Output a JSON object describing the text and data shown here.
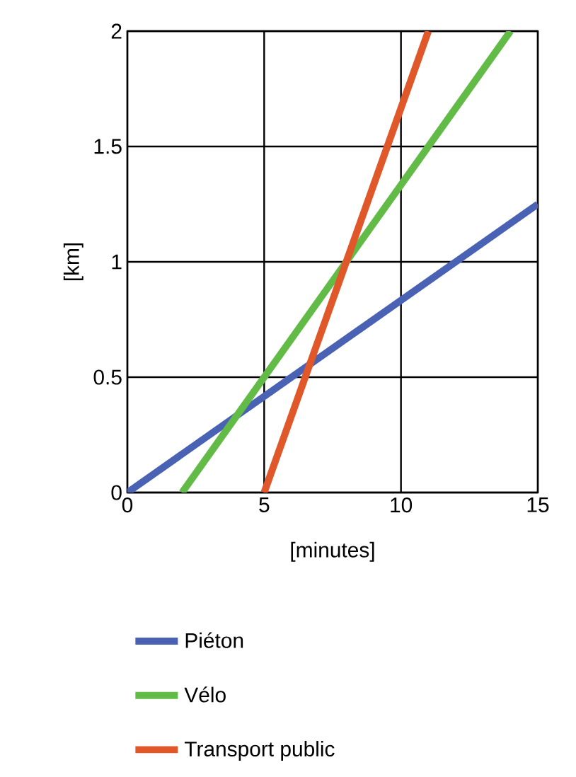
{
  "chart_data": {
    "type": "line",
    "xlabel": "[minutes]",
    "ylabel": "[km]",
    "xlim": [
      0,
      15
    ],
    "ylim": [
      0,
      2
    ],
    "xticks": [
      0,
      5,
      10,
      15
    ],
    "yticks": [
      0,
      0.5,
      1,
      1.5,
      2
    ],
    "grid": true,
    "legend": "bottom",
    "series": [
      {
        "name": "Piéton",
        "color": "#4a62b4",
        "x": [
          0,
          15
        ],
        "values": [
          0,
          1.25
        ]
      },
      {
        "name": "Vélo",
        "color": "#62bb46",
        "x": [
          2,
          14
        ],
        "values": [
          0,
          2
        ]
      },
      {
        "name": "Transport public",
        "color": "#e0582a",
        "x": [
          5,
          11
        ],
        "values": [
          0,
          2
        ]
      }
    ]
  }
}
